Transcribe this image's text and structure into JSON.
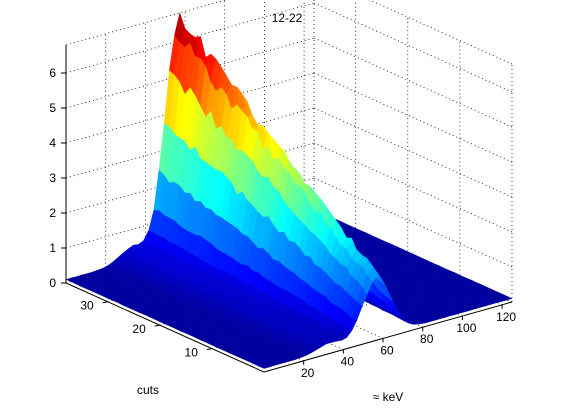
{
  "chart_data": {
    "type": "surface",
    "title": "12-22",
    "xlabel": "≈ keV",
    "ylabel": "cuts",
    "zlabel": "",
    "x_ticks": [
      "20",
      "40",
      "60",
      "80",
      "100",
      "120"
    ],
    "y_ticks": [
      "10",
      "20",
      "30"
    ],
    "z_ticks": [
      "0",
      "1",
      "2",
      "3",
      "4",
      "5",
      "6"
    ],
    "xlim": [
      0,
      125
    ],
    "ylim": [
      0,
      38
    ],
    "zlim": [
      0,
      6.8
    ],
    "grid": true,
    "colormap": "jet",
    "colormap_stops": [
      "#00008f",
      "#0000ff",
      "#00ffff",
      "#ffff00",
      "#ff0000",
      "#800000"
    ],
    "peaks": [
      {
        "name": "main",
        "x_center": 57,
        "x_sigma": 7,
        "z_at_y_min": 1.7,
        "z_at_y_max": 6.6
      },
      {
        "name": "minor",
        "x_center": 33,
        "x_sigma": 6,
        "z_at_y_min": 0.2,
        "z_at_y_max": 0.4
      }
    ],
    "baseline_z": 0.1
  }
}
